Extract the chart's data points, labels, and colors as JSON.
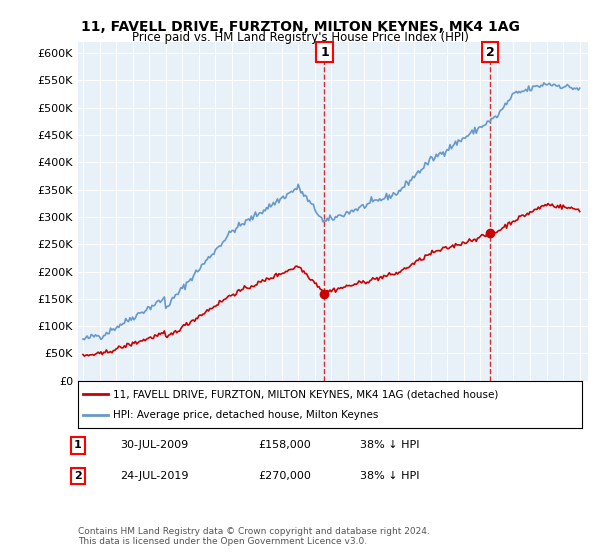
{
  "title": "11, FAVELL DRIVE, FURZTON, MILTON KEYNES, MK4 1AG",
  "subtitle": "Price paid vs. HM Land Registry's House Price Index (HPI)",
  "legend_line1": "11, FAVELL DRIVE, FURZTON, MILTON KEYNES, MK4 1AG (detached house)",
  "legend_line2": "HPI: Average price, detached house, Milton Keynes",
  "annotation1_label": "1",
  "annotation1_date": "30-JUL-2009",
  "annotation1_price": "£158,000",
  "annotation1_hpi": "38% ↓ HPI",
  "annotation2_label": "2",
  "annotation2_date": "24-JUL-2019",
  "annotation2_price": "£270,000",
  "annotation2_hpi": "38% ↓ HPI",
  "footnote": "Contains HM Land Registry data © Crown copyright and database right 2024.\nThis data is licensed under the Open Government Licence v3.0.",
  "hpi_color": "#6699CC",
  "price_color": "#CC0000",
  "annotation_color": "#CC0000",
  "background_color": "#E8F0F8",
  "ylim": [
    0,
    620000
  ],
  "yticks": [
    0,
    50000,
    100000,
    150000,
    200000,
    250000,
    300000,
    350000,
    400000,
    450000,
    500000,
    550000,
    600000
  ],
  "ytick_labels": [
    "£0",
    "£50K",
    "£100K",
    "£150K",
    "£200K",
    "£250K",
    "£300K",
    "£350K",
    "£400K",
    "£450K",
    "£500K",
    "£550K",
    "£600K"
  ]
}
